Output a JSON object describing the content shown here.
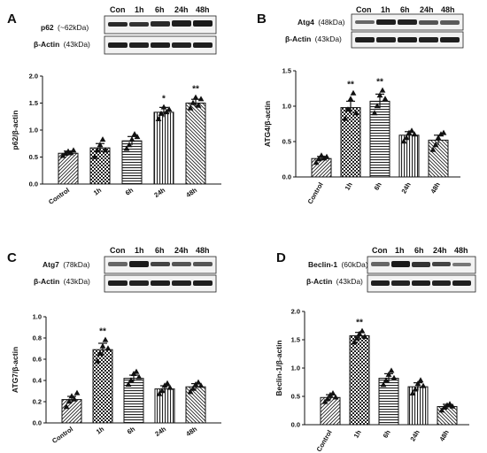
{
  "panels": [
    {
      "letter": "A",
      "blot": {
        "lanes": [
          "Con",
          "1h",
          "6h",
          "24h",
          "48h"
        ],
        "rows": [
          {
            "protein": "p62",
            "kda": "(~62kDa)"
          },
          {
            "protein": "β-Actin",
            "kda": "(43kDa)"
          }
        ]
      }
    },
    {
      "letter": "B",
      "blot": {
        "lanes": [
          "Con",
          "1h",
          "6h",
          "24h",
          "48h"
        ],
        "rows": [
          {
            "protein": "Atg4",
            "kda": "(48kDa)"
          },
          {
            "protein": "β-Actin",
            "kda": "(43kDa)"
          }
        ]
      }
    },
    {
      "letter": "C",
      "blot": {
        "lanes": [
          "Con",
          "1h",
          "6h",
          "24h",
          "48h"
        ],
        "rows": [
          {
            "protein": "Atg7",
            "kda": "(78kDa)"
          },
          {
            "protein": "β-Actin",
            "kda": "(43kDa)"
          }
        ]
      }
    },
    {
      "letter": "D",
      "blot": {
        "lanes": [
          "Con",
          "1h",
          "6h",
          "24h",
          "48h"
        ],
        "rows": [
          {
            "protein": "Beclin-1",
            "kda": "(60kDa)"
          },
          {
            "protein": "β-Actin",
            "kda": "(43kDa)"
          }
        ]
      }
    }
  ],
  "chart_data": [
    {
      "type": "bar",
      "categories": [
        "Control",
        "1h",
        "6h",
        "24h",
        "48h"
      ],
      "values": [
        0.57,
        0.67,
        0.8,
        1.33,
        1.5
      ],
      "errors": [
        0.04,
        0.08,
        0.08,
        0.09,
        0.07
      ],
      "points": [
        [
          0.52,
          0.56,
          0.6,
          0.57,
          0.62
        ],
        [
          0.5,
          0.62,
          0.72,
          0.82,
          0.62
        ],
        [
          0.65,
          0.72,
          0.82,
          0.92,
          0.87
        ],
        [
          1.2,
          1.3,
          1.42,
          1.33,
          1.38
        ],
        [
          1.4,
          1.5,
          1.6,
          1.45,
          1.57
        ]
      ],
      "patterns": [
        "hatch-bt",
        "check",
        "hlines",
        "vlines",
        "hatch-tb"
      ],
      "significance": [
        "",
        "",
        "",
        "*",
        "**"
      ],
      "ylabel": "p62/β-actin",
      "xlabel": "",
      "ylim": [
        0,
        2.0
      ],
      "yticks": [
        "0.0",
        "0.5",
        "1.0",
        "1.5",
        "2.0"
      ],
      "ytick_values": [
        0,
        0.5,
        1.0,
        1.5,
        2.0
      ]
    },
    {
      "type": "bar",
      "categories": [
        "Control",
        "1h",
        "6h",
        "24h",
        "48h"
      ],
      "values": [
        0.26,
        0.98,
        1.07,
        0.59,
        0.52
      ],
      "errors": [
        0.03,
        0.09,
        0.1,
        0.05,
        0.07
      ],
      "points": [
        [
          0.2,
          0.25,
          0.3,
          0.26,
          0.28
        ],
        [
          0.82,
          0.95,
          1.1,
          1.18,
          0.9
        ],
        [
          0.9,
          1.0,
          1.15,
          1.22,
          1.1
        ],
        [
          0.5,
          0.55,
          0.62,
          0.65,
          0.6
        ],
        [
          0.38,
          0.45,
          0.55,
          0.6,
          0.62
        ]
      ],
      "patterns": [
        "hatch-bt",
        "check",
        "hlines",
        "vlines",
        "hatch-tb"
      ],
      "significance": [
        "",
        "**",
        "**",
        "",
        ""
      ],
      "ylabel": "ATG4/β-actin",
      "xlabel": "",
      "ylim": [
        0,
        1.5
      ],
      "yticks": [
        "0.0",
        "0.5",
        "1.0",
        "1.5"
      ],
      "ytick_values": [
        0,
        0.5,
        1.0,
        1.5
      ]
    },
    {
      "type": "bar",
      "categories": [
        "Control",
        "1h",
        "6h",
        "24h",
        "48h"
      ],
      "values": [
        0.22,
        0.69,
        0.42,
        0.32,
        0.34
      ],
      "errors": [
        0.03,
        0.06,
        0.03,
        0.03,
        0.03
      ],
      "points": [
        [
          0.15,
          0.2,
          0.25,
          0.22,
          0.28
        ],
        [
          0.58,
          0.65,
          0.72,
          0.78,
          0.7
        ],
        [
          0.36,
          0.4,
          0.46,
          0.48,
          0.43
        ],
        [
          0.27,
          0.3,
          0.35,
          0.37,
          0.33
        ],
        [
          0.29,
          0.32,
          0.36,
          0.38,
          0.35
        ]
      ],
      "patterns": [
        "hatch-bt",
        "check",
        "hlines",
        "vlines",
        "hatch-tb"
      ],
      "significance": [
        "",
        "**",
        "",
        "",
        ""
      ],
      "ylabel": "ATG7/β-actin",
      "xlabel": "",
      "ylim": [
        0,
        1.0
      ],
      "yticks": [
        "0.0",
        "0.2",
        "0.4",
        "0.6",
        "0.8",
        "1.0"
      ],
      "ytick_values": [
        0,
        0.2,
        0.4,
        0.6,
        0.8,
        1.0
      ]
    },
    {
      "type": "bar",
      "categories": [
        "Control",
        "1h",
        "6h",
        "24h",
        "48h"
      ],
      "values": [
        0.48,
        1.57,
        0.82,
        0.67,
        0.32
      ],
      "errors": [
        0.05,
        0.06,
        0.08,
        0.07,
        0.04
      ],
      "points": [
        [
          0.4,
          0.45,
          0.52,
          0.55,
          0.48
        ],
        [
          1.45,
          1.52,
          1.6,
          1.65,
          1.55
        ],
        [
          0.7,
          0.78,
          0.88,
          0.95,
          0.82
        ],
        [
          0.55,
          0.62,
          0.72,
          0.78,
          0.68
        ],
        [
          0.25,
          0.3,
          0.34,
          0.36,
          0.32
        ]
      ],
      "patterns": [
        "hatch-bt",
        "check",
        "hlines",
        "vlines",
        "hatch-tb"
      ],
      "significance": [
        "",
        "**",
        "",
        "",
        ""
      ],
      "ylabel": "Beclin-1/β-actin",
      "xlabel": "",
      "ylim": [
        0,
        2.0
      ],
      "yticks": [
        "0.0",
        "0.5",
        "1.0",
        "1.5",
        "2.0"
      ],
      "ytick_values": [
        0,
        0.5,
        1.0,
        1.5,
        2.0
      ]
    }
  ]
}
